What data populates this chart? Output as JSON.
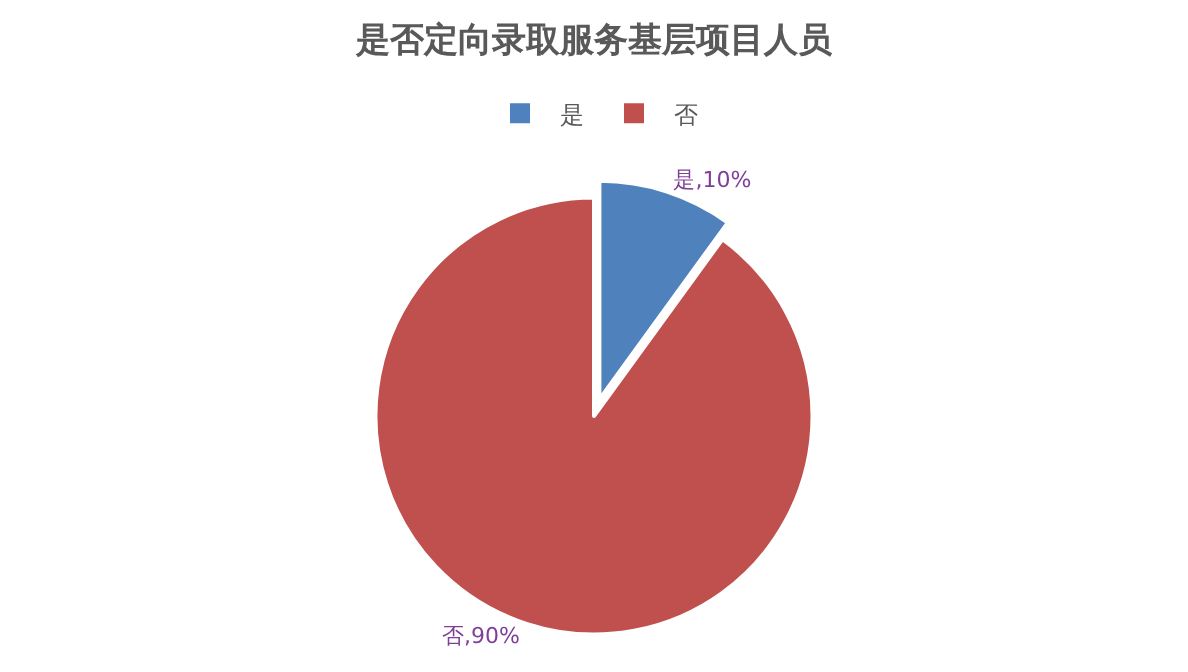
{
  "chart_data": {
    "type": "pie",
    "title": "是否定向录取服务基层项目人员",
    "categories": [
      "是",
      "否"
    ],
    "values": [
      10,
      90
    ],
    "colors": [
      "#4f81bd",
      "#c0504d"
    ],
    "value_labels": [
      "是,10%",
      "否,90%"
    ],
    "legend": "top"
  }
}
